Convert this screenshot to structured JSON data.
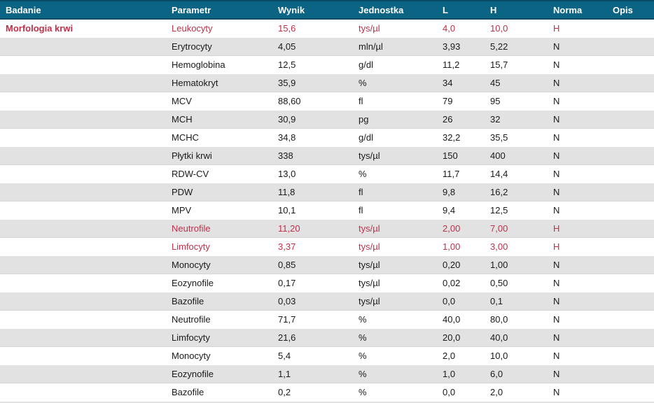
{
  "table": {
    "columns": [
      {
        "key": "badanie",
        "label": "Badanie"
      },
      {
        "key": "parametr",
        "label": "Parametr"
      },
      {
        "key": "wynik",
        "label": "Wynik"
      },
      {
        "key": "jednostka",
        "label": "Jednostka"
      },
      {
        "key": "l",
        "label": "L"
      },
      {
        "key": "h",
        "label": "H"
      },
      {
        "key": "norma",
        "label": "Norma"
      },
      {
        "key": "opis",
        "label": "Opis"
      }
    ],
    "rows": [
      {
        "cells": [
          "Morfologia krwi",
          "Leukocyty",
          "15,6",
          "tys/µl",
          "4,0",
          "10,0",
          "H",
          ""
        ],
        "abnormal": true
      },
      {
        "cells": [
          "",
          "Erytrocyty",
          "4,05",
          "mln/µl",
          "3,93",
          "5,22",
          "N",
          ""
        ],
        "abnormal": false
      },
      {
        "cells": [
          "",
          "Hemoglobina",
          "12,5",
          "g/dl",
          "11,2",
          "15,7",
          "N",
          ""
        ],
        "abnormal": false
      },
      {
        "cells": [
          "",
          "Hematokryt",
          "35,9",
          "%",
          "34",
          "45",
          "N",
          ""
        ],
        "abnormal": false
      },
      {
        "cells": [
          "",
          "MCV",
          "88,60",
          "fl",
          "79",
          "95",
          "N",
          ""
        ],
        "abnormal": false
      },
      {
        "cells": [
          "",
          "MCH",
          "30,9",
          "pg",
          "26",
          "32",
          "N",
          ""
        ],
        "abnormal": false
      },
      {
        "cells": [
          "",
          "MCHC",
          "34,8",
          "g/dl",
          "32,2",
          "35,5",
          "N",
          ""
        ],
        "abnormal": false
      },
      {
        "cells": [
          "",
          "Płytki krwi",
          "338",
          "tys/µl",
          "150",
          "400",
          "N",
          ""
        ],
        "abnormal": false
      },
      {
        "cells": [
          "",
          "RDW-CV",
          "13,0",
          "%",
          "11,7",
          "14,4",
          "N",
          ""
        ],
        "abnormal": false
      },
      {
        "cells": [
          "",
          "PDW",
          "11,8",
          "fl",
          "9,8",
          "16,2",
          "N",
          ""
        ],
        "abnormal": false
      },
      {
        "cells": [
          "",
          "MPV",
          "10,1",
          "fl",
          "9,4",
          "12,5",
          "N",
          ""
        ],
        "abnormal": false
      },
      {
        "cells": [
          "",
          "Neutrofile",
          "11,20",
          "tys/µl",
          "2,00",
          "7,00",
          "H",
          ""
        ],
        "abnormal": true
      },
      {
        "cells": [
          "",
          "Limfocyty",
          "3,37",
          "tys/µl",
          "1,00",
          "3,00",
          "H",
          ""
        ],
        "abnormal": true
      },
      {
        "cells": [
          "",
          "Monocyty",
          "0,85",
          "tys/µl",
          "0,20",
          "1,00",
          "N",
          ""
        ],
        "abnormal": false
      },
      {
        "cells": [
          "",
          "Eozynofile",
          "0,17",
          "tys/µl",
          "0,02",
          "0,50",
          "N",
          ""
        ],
        "abnormal": false
      },
      {
        "cells": [
          "",
          "Bazofile",
          "0,03",
          "tys/µl",
          "0,0",
          "0,1",
          "N",
          ""
        ],
        "abnormal": false
      },
      {
        "cells": [
          "",
          "Neutrofile",
          "71,7",
          "%",
          "40,0",
          "80,0",
          "N",
          ""
        ],
        "abnormal": false
      },
      {
        "cells": [
          "",
          "Limfocyty",
          "21,6",
          "%",
          "20,0",
          "40,0",
          "N",
          ""
        ],
        "abnormal": false
      },
      {
        "cells": [
          "",
          "Monocyty",
          "5,4",
          "%",
          "2,0",
          "10,0",
          "N",
          ""
        ],
        "abnormal": false
      },
      {
        "cells": [
          "",
          "Eozynofile",
          "1,1",
          "%",
          "1,0",
          "6,0",
          "N",
          ""
        ],
        "abnormal": false
      },
      {
        "cells": [
          "",
          "Bazofile",
          "0,2",
          "%",
          "0,0",
          "2,0",
          "N",
          ""
        ],
        "abnormal": false
      }
    ],
    "colors": {
      "header_bg": "#0c6484",
      "header_border": "#0a4b61",
      "header_text": "#ffffff",
      "abnormal_text": "#c0304a",
      "stripe_bg": "#e2e2e2",
      "body_text": "#1a1a1a"
    }
  }
}
